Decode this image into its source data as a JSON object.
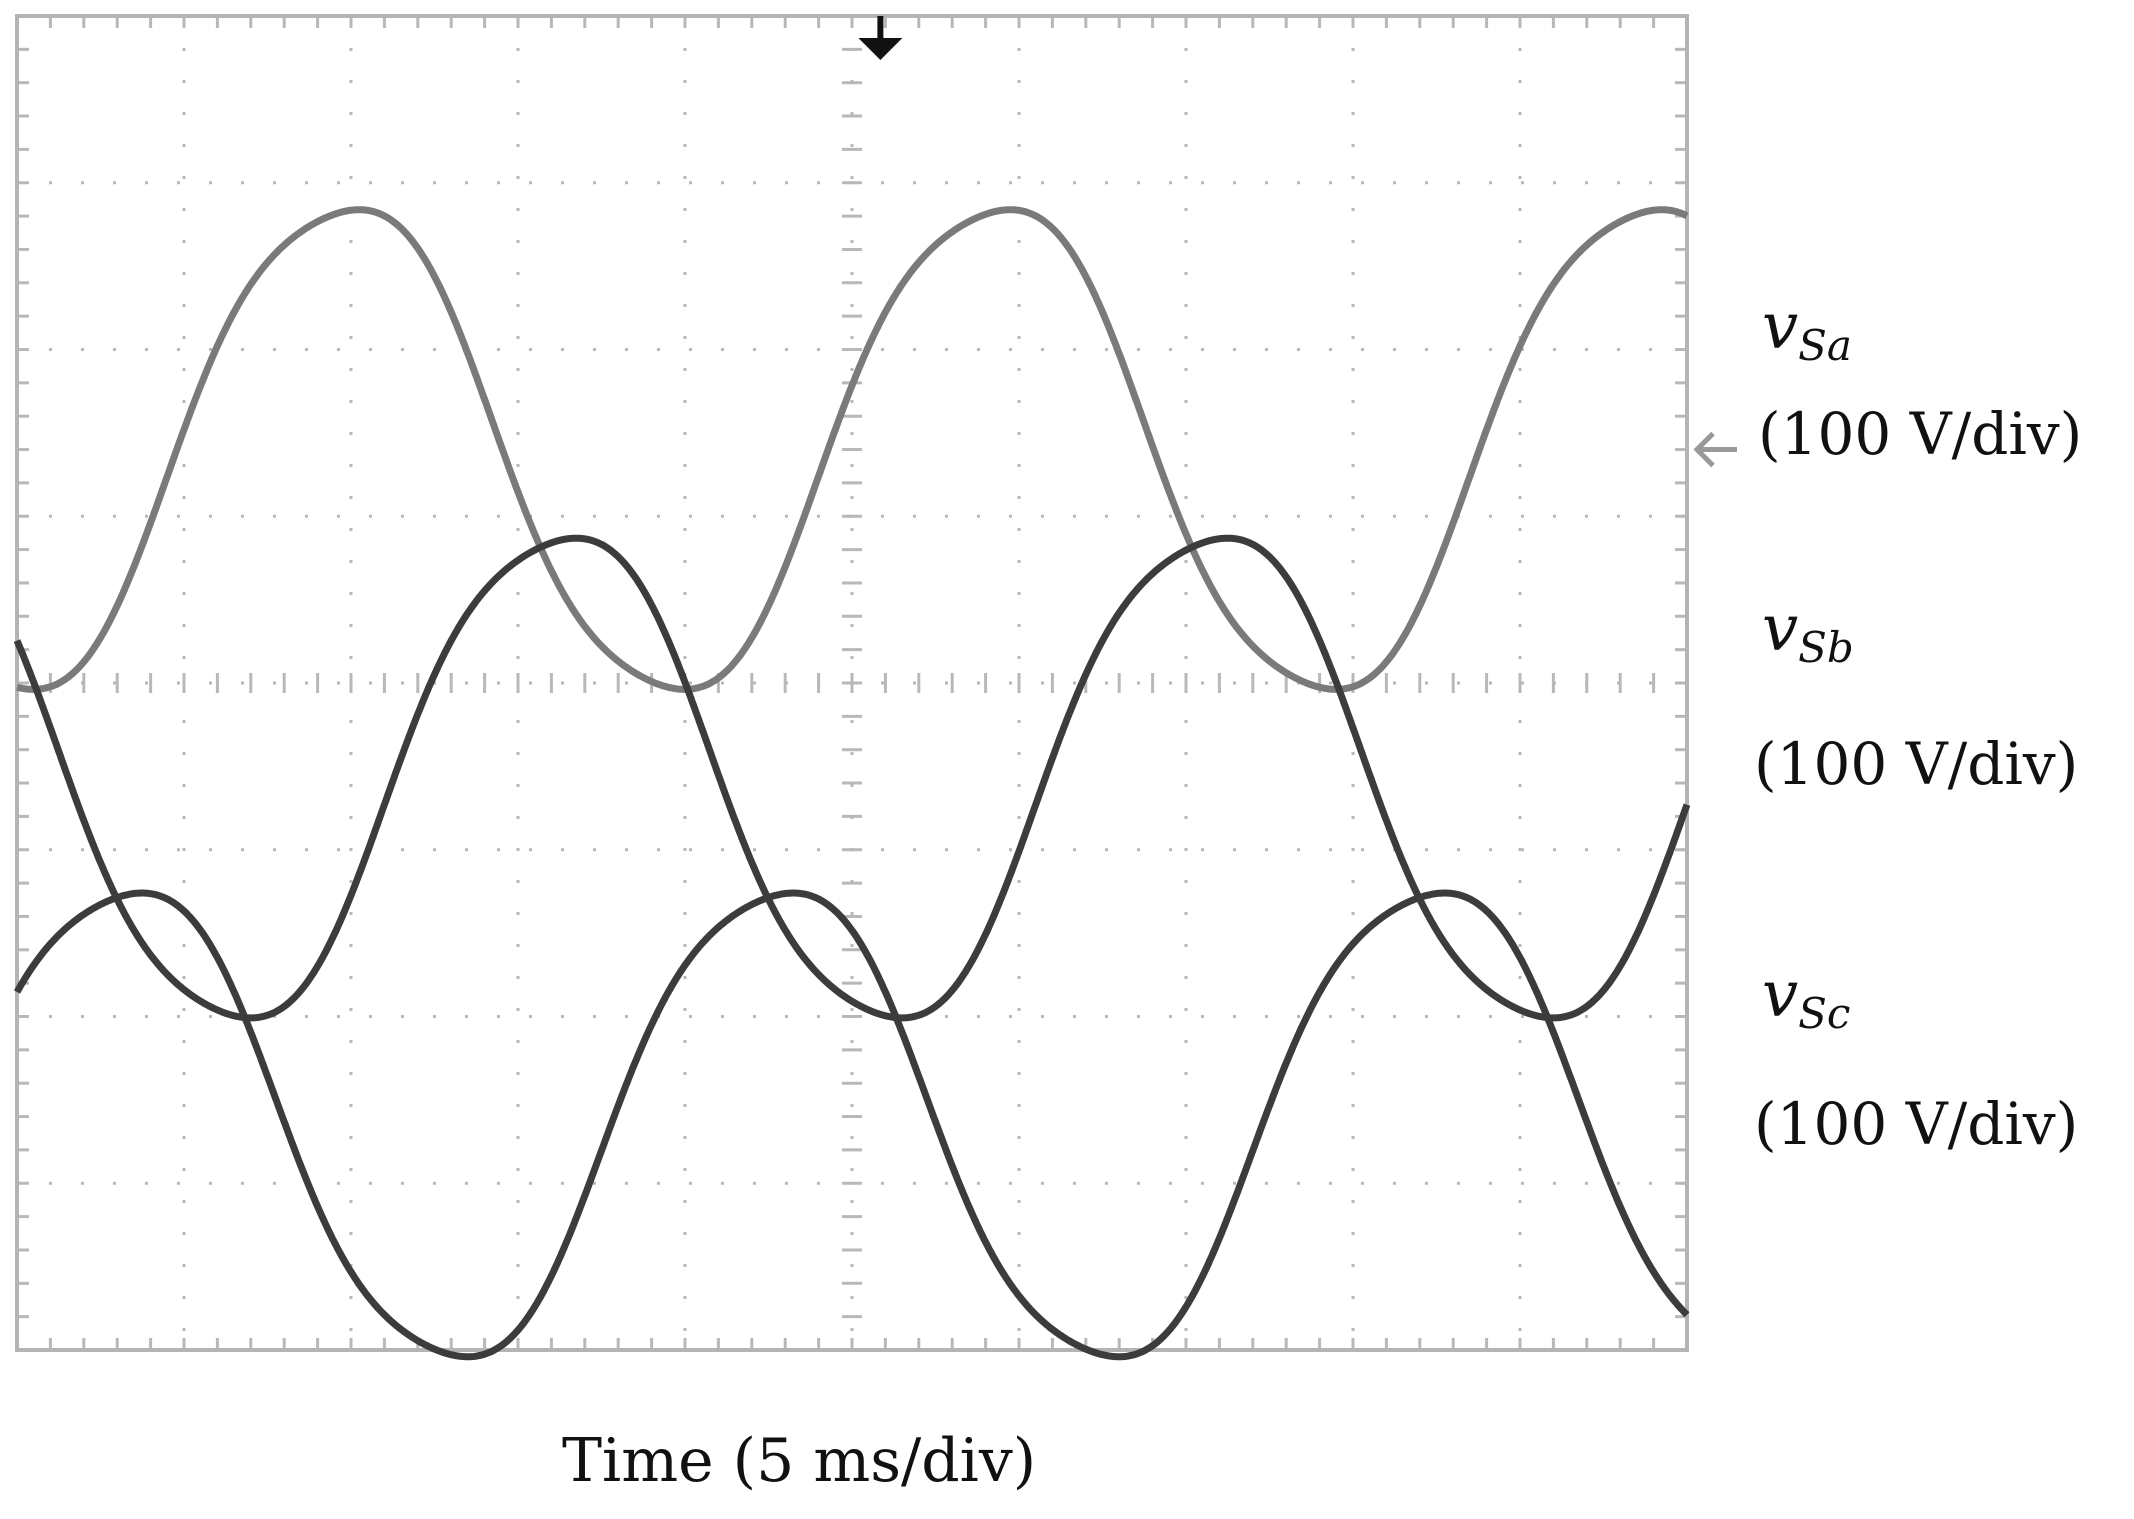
{
  "chart_data": {
    "type": "line",
    "title": "",
    "xlabel": "Time (5 ms/div)",
    "ylabel": "",
    "grid": true,
    "divisions": {
      "x": 10,
      "y": 8
    },
    "xlim": [
      0,
      10
    ],
    "ylim": [
      0,
      8
    ],
    "trigger_marker": {
      "x_div": 5.17
    },
    "reference_marker": {
      "series": "vSa"
    },
    "series": [
      {
        "name": "v",
        "sub": "Sa",
        "scale_label": "(100 V/div)",
        "color": "#7a7a7a",
        "center_div": 5.4,
        "amplitude_div": 1.5,
        "period_div": 3.9,
        "phase_deg": -90
      },
      {
        "name": "v",
        "sub": "Sb",
        "scale_label": "(100 V/div)",
        "color": "#3c3c3c",
        "center_div": 3.43,
        "amplitude_div": 1.5,
        "period_div": 3.9,
        "phase_deg": 150
      },
      {
        "name": "v",
        "sub": "Sc",
        "scale_label": "(100 V/div)",
        "color": "#3c3c3c",
        "center_div": 1.35,
        "amplitude_div": 1.45,
        "period_div": 3.9,
        "phase_deg": 30
      }
    ]
  }
}
